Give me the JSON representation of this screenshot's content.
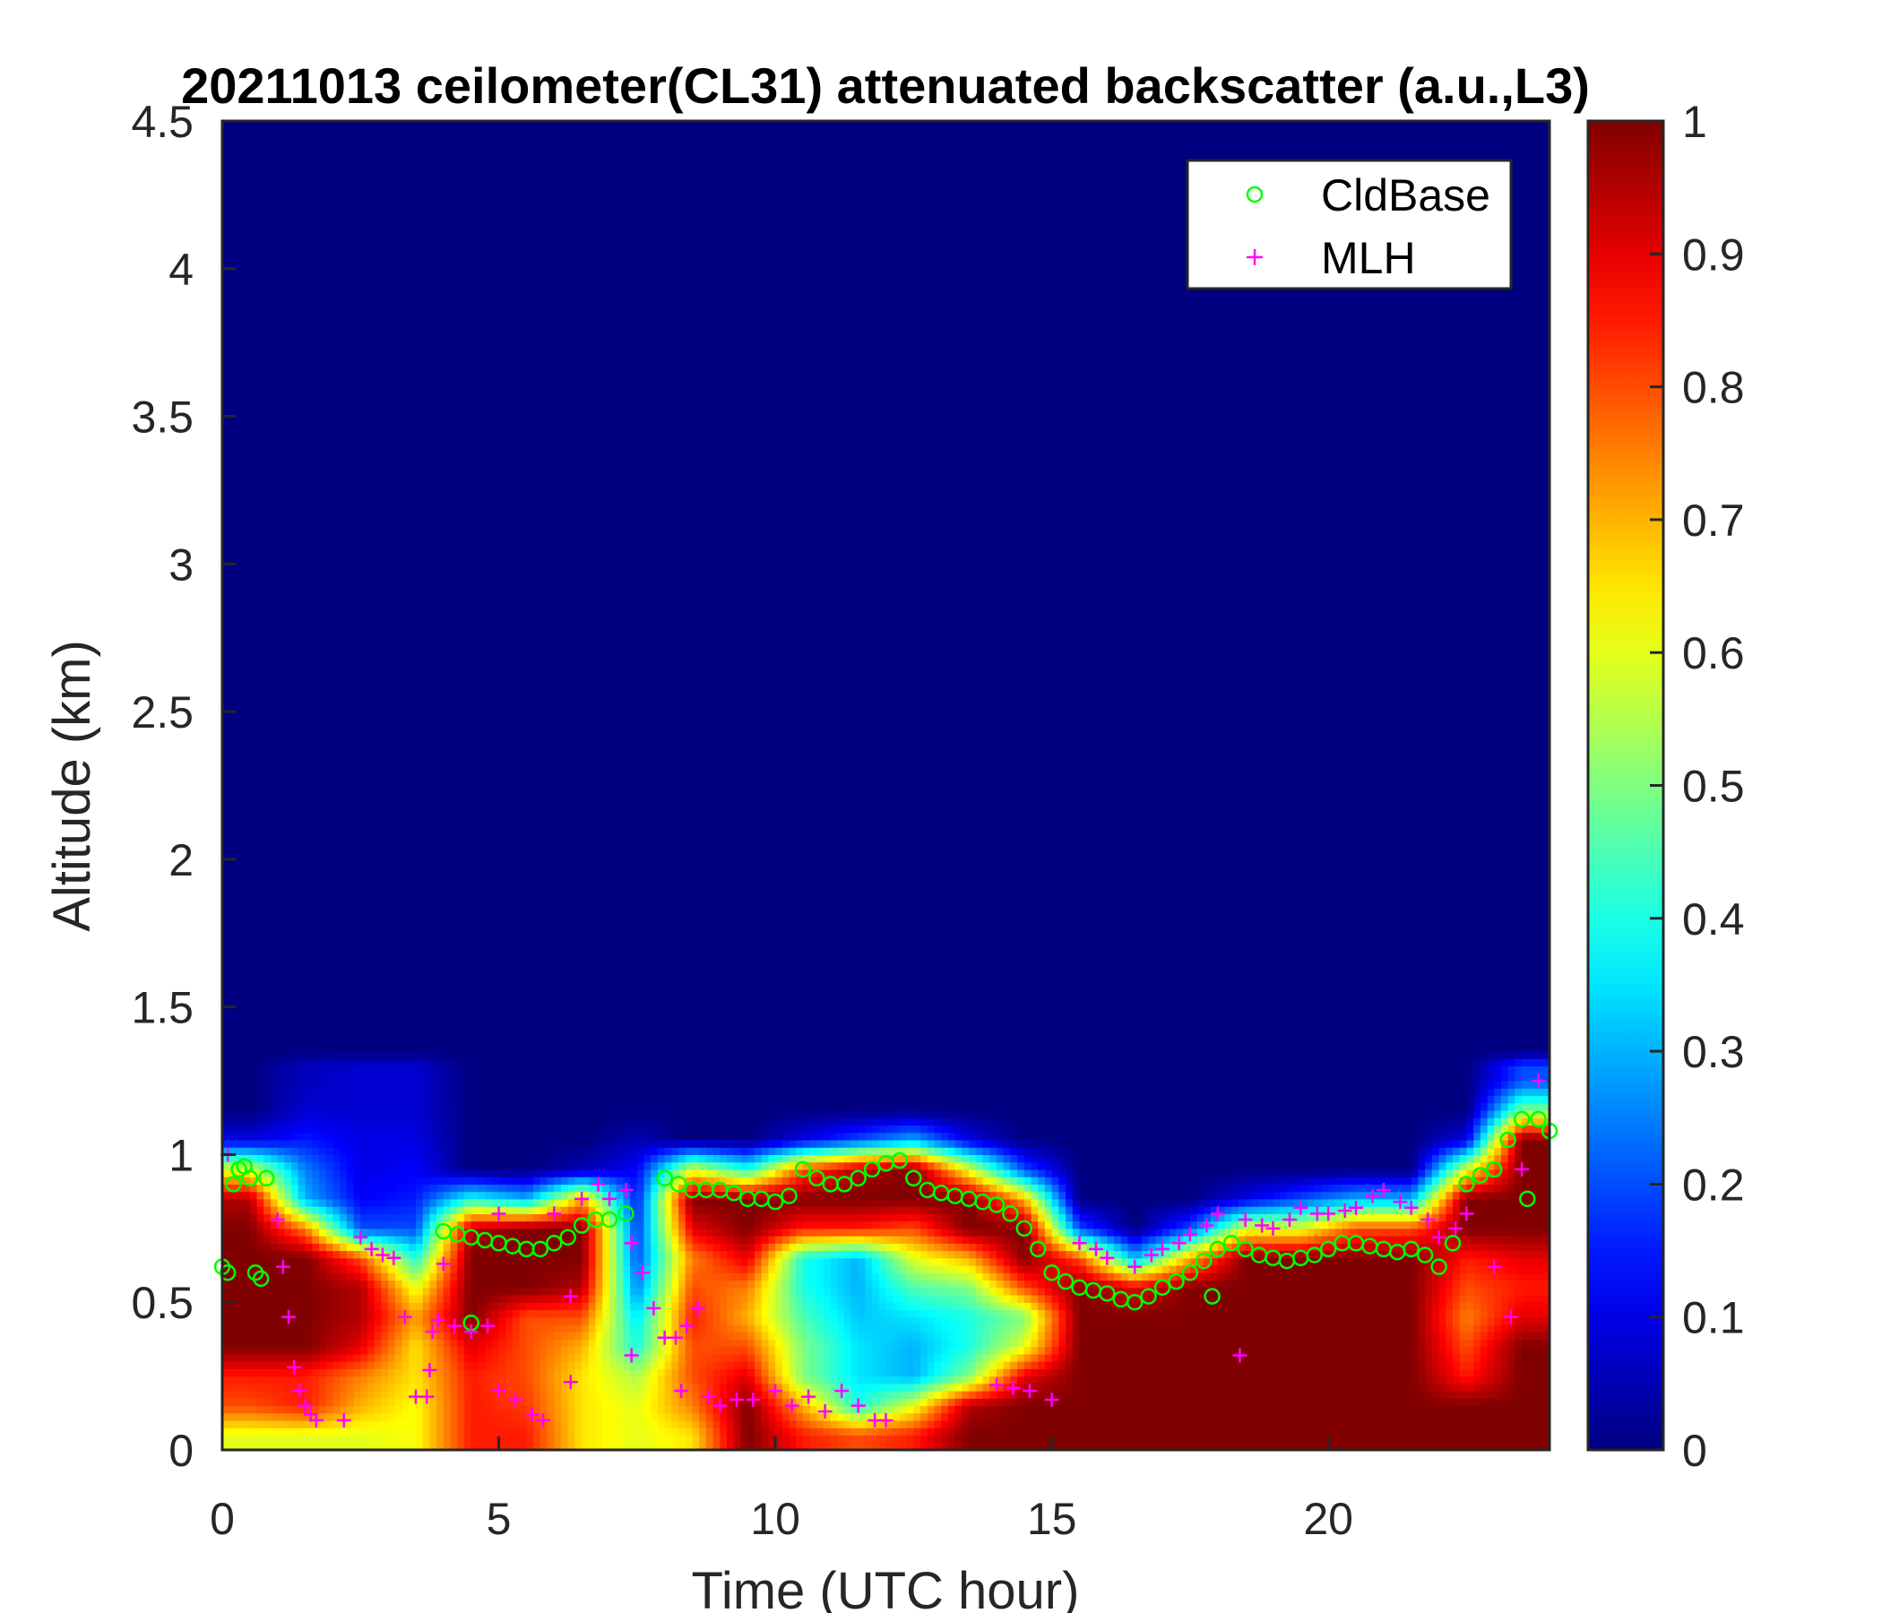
{
  "chart_data": {
    "type": "heatmap",
    "title": "20211013 ceilometer(CL31) attenuated backscatter (a.u.,L3)",
    "xlabel": "Time (UTC hour)",
    "ylabel": "Altitude (km)",
    "xlim": [
      0,
      24
    ],
    "ylim": [
      0,
      4.5
    ],
    "xticks": [
      0,
      5,
      10,
      15,
      20
    ],
    "yticks": [
      0,
      0.5,
      1,
      1.5,
      2,
      2.5,
      3,
      3.5,
      4,
      4.5
    ],
    "colormap": "jet",
    "clim": [
      0,
      1
    ],
    "colorbar_ticks": [
      0,
      0.1,
      0.2,
      0.3,
      0.4,
      0.5,
      0.6,
      0.7,
      0.8,
      0.9,
      1
    ],
    "grid": false,
    "legend_position": "top-right",
    "heatmap_time_centers_hour": [
      0.5,
      1.5,
      2.5,
      3.5,
      4.5,
      5.5,
      6.5,
      7.5,
      8.5,
      9.5,
      10.5,
      11.5,
      12.5,
      13.5,
      14.5,
      15.5,
      16.5,
      17.5,
      18.5,
      19.5,
      20.5,
      21.5,
      22.5,
      23.5
    ],
    "heatmap_altitude_centers_km": [
      0.05,
      0.15,
      0.25,
      0.35,
      0.45,
      0.55,
      0.65,
      0.75,
      0.85,
      0.95,
      1.05,
      1.15,
      1.25
    ],
    "heatmap_values_above_1_3km": 0,
    "heatmap_values": [
      [
        0.6,
        0.8,
        0.85,
        1,
        1,
        1,
        1,
        1,
        0.95,
        0.6,
        0.1,
        0,
        0
      ],
      [
        0.6,
        0.85,
        0.85,
        1,
        1,
        1,
        1,
        0.75,
        0.3,
        0.25,
        0.15,
        0.08,
        0.06
      ],
      [
        0.6,
        0.7,
        0.75,
        0.9,
        0.95,
        0.95,
        0.8,
        0.2,
        0.12,
        0.1,
        0.1,
        0.08,
        0.08
      ],
      [
        0.62,
        0.62,
        0.65,
        0.65,
        0.72,
        0.6,
        0.4,
        0.2,
        0.15,
        0.12,
        0.1,
        0.08,
        0.08
      ],
      [
        0.85,
        0.85,
        0.85,
        0.9,
        1,
        1,
        1,
        0.95,
        0.4,
        0,
        0,
        0,
        0
      ],
      [
        0.85,
        0.82,
        0.8,
        0.8,
        0.8,
        1,
        1,
        1,
        0.3,
        0,
        0,
        0,
        0
      ],
      [
        0.65,
        0.65,
        0.65,
        0.7,
        0.8,
        0.95,
        1,
        1,
        0.7,
        0.05,
        0,
        0,
        0
      ],
      [
        0.6,
        0.6,
        0.55,
        0.4,
        0.35,
        0.25,
        0.2,
        0.18,
        0.15,
        0.12,
        0.05,
        0,
        0
      ],
      [
        0.65,
        0.75,
        0.8,
        0.8,
        0.85,
        0.8,
        0.75,
        0.9,
        1,
        0.6,
        0,
        0,
        0
      ],
      [
        1,
        1,
        0.9,
        0.8,
        0.7,
        0.75,
        0.9,
        1,
        1,
        0.4,
        0,
        0,
        0
      ],
      [
        0.85,
        0.7,
        0.5,
        0.5,
        0.45,
        0.4,
        0.4,
        0.85,
        1,
        0.8,
        0.1,
        0,
        0
      ],
      [
        0.8,
        0.4,
        0.35,
        0.35,
        0.32,
        0.3,
        0.3,
        0.85,
        1,
        0.95,
        0.2,
        0,
        0
      ],
      [
        0.85,
        0.6,
        0.3,
        0.3,
        0.35,
        0.45,
        0.6,
        0.8,
        1,
        1,
        0.3,
        0,
        0
      ],
      [
        1,
        0.95,
        0.5,
        0.4,
        0.4,
        0.5,
        0.7,
        1,
        1,
        0.6,
        0.1,
        0,
        0
      ],
      [
        1,
        1,
        0.9,
        0.6,
        0.5,
        0.8,
        1,
        1,
        0.7,
        0.2,
        0,
        0,
        0
      ],
      [
        1,
        1,
        1,
        1,
        1,
        1,
        0.8,
        0.2,
        0,
        0,
        0,
        0,
        0
      ],
      [
        1,
        1,
        1,
        1,
        1,
        0.9,
        0.3,
        0,
        0,
        0,
        0,
        0,
        0
      ],
      [
        1,
        1,
        1,
        1,
        1,
        1,
        0.7,
        0.2,
        0,
        0,
        0,
        0,
        0
      ],
      [
        1,
        1,
        1,
        1,
        1,
        1,
        1,
        0.6,
        0.1,
        0,
        0,
        0,
        0
      ],
      [
        1,
        1,
        1,
        1,
        1,
        1,
        1,
        0.6,
        0.2,
        0,
        0,
        0,
        0
      ],
      [
        1,
        1,
        1,
        1,
        1,
        1,
        1,
        0.8,
        0.3,
        0,
        0,
        0,
        0
      ],
      [
        1,
        1,
        1,
        1,
        1,
        1,
        1,
        0.8,
        0.3,
        0,
        0,
        0,
        0
      ],
      [
        1,
        1,
        0.85,
        0.8,
        0.75,
        0.8,
        0.85,
        1,
        1,
        0.6,
        0.1,
        0,
        0
      ],
      [
        1,
        1,
        1,
        1,
        0.9,
        0.85,
        0.9,
        1,
        1,
        1,
        1,
        0.5,
        0.2
      ]
    ],
    "series": [
      {
        "name": "CldBase",
        "marker": "circle",
        "color": "#00ff00",
        "points": [
          [
            0,
            0.62
          ],
          [
            0.1,
            0.6
          ],
          [
            0.2,
            0.9
          ],
          [
            0.3,
            0.95
          ],
          [
            0.4,
            0.96
          ],
          [
            0.5,
            0.92
          ],
          [
            0.6,
            0.6
          ],
          [
            0.7,
            0.58
          ],
          [
            0.8,
            0.92
          ],
          [
            4.0,
            0.74
          ],
          [
            4.25,
            0.73
          ],
          [
            4.5,
            0.72
          ],
          [
            4.5,
            0.43
          ],
          [
            4.75,
            0.71
          ],
          [
            5.0,
            0.7
          ],
          [
            5.25,
            0.69
          ],
          [
            5.5,
            0.68
          ],
          [
            5.75,
            0.68
          ],
          [
            6.0,
            0.7
          ],
          [
            6.25,
            0.72
          ],
          [
            6.5,
            0.76
          ],
          [
            6.75,
            0.78
          ],
          [
            7.0,
            0.78
          ],
          [
            7.3,
            0.8
          ],
          [
            8.0,
            0.92
          ],
          [
            8.25,
            0.9
          ],
          [
            8.5,
            0.88
          ],
          [
            8.75,
            0.88
          ],
          [
            9.0,
            0.88
          ],
          [
            9.25,
            0.87
          ],
          [
            9.5,
            0.85
          ],
          [
            9.75,
            0.85
          ],
          [
            10.0,
            0.84
          ],
          [
            10.25,
            0.86
          ],
          [
            10.5,
            0.95
          ],
          [
            10.75,
            0.92
          ],
          [
            11.0,
            0.9
          ],
          [
            11.25,
            0.9
          ],
          [
            11.5,
            0.92
          ],
          [
            11.75,
            0.95
          ],
          [
            12.0,
            0.97
          ],
          [
            12.25,
            0.98
          ],
          [
            12.5,
            0.92
          ],
          [
            12.75,
            0.88
          ],
          [
            13.0,
            0.87
          ],
          [
            13.25,
            0.86
          ],
          [
            13.5,
            0.85
          ],
          [
            13.75,
            0.84
          ],
          [
            14.0,
            0.83
          ],
          [
            14.25,
            0.8
          ],
          [
            14.5,
            0.75
          ],
          [
            14.75,
            0.68
          ],
          [
            15.0,
            0.6
          ],
          [
            15.25,
            0.57
          ],
          [
            15.5,
            0.55
          ],
          [
            15.75,
            0.54
          ],
          [
            16.0,
            0.53
          ],
          [
            16.25,
            0.51
          ],
          [
            16.5,
            0.5
          ],
          [
            16.75,
            0.52
          ],
          [
            17.0,
            0.55
          ],
          [
            17.25,
            0.57
          ],
          [
            17.5,
            0.6
          ],
          [
            17.75,
            0.64
          ],
          [
            17.9,
            0.52
          ],
          [
            18.0,
            0.68
          ],
          [
            18.25,
            0.7
          ],
          [
            18.5,
            0.68
          ],
          [
            18.75,
            0.66
          ],
          [
            19.0,
            0.65
          ],
          [
            19.25,
            0.64
          ],
          [
            19.5,
            0.65
          ],
          [
            19.75,
            0.66
          ],
          [
            20.0,
            0.68
          ],
          [
            20.25,
            0.7
          ],
          [
            20.5,
            0.7
          ],
          [
            20.75,
            0.69
          ],
          [
            21.0,
            0.68
          ],
          [
            21.25,
            0.67
          ],
          [
            21.5,
            0.68
          ],
          [
            21.75,
            0.66
          ],
          [
            22.0,
            0.62
          ],
          [
            22.25,
            0.7
          ],
          [
            22.5,
            0.9
          ],
          [
            22.75,
            0.93
          ],
          [
            23.0,
            0.95
          ],
          [
            23.25,
            1.05
          ],
          [
            23.5,
            1.12
          ],
          [
            23.6,
            0.85
          ],
          [
            23.8,
            1.12
          ],
          [
            24.0,
            1.08
          ]
        ]
      },
      {
        "name": "MLH",
        "marker": "plus",
        "color": "#ff00ff",
        "points": [
          [
            0.1,
            1.0
          ],
          [
            1.0,
            0.78
          ],
          [
            1.1,
            0.62
          ],
          [
            1.2,
            0.45
          ],
          [
            1.3,
            0.28
          ],
          [
            1.4,
            0.2
          ],
          [
            1.5,
            0.15
          ],
          [
            1.6,
            0.12
          ],
          [
            1.7,
            0.1
          ],
          [
            2.2,
            0.1
          ],
          [
            2.5,
            0.72
          ],
          [
            2.7,
            0.68
          ],
          [
            2.9,
            0.66
          ],
          [
            3.1,
            0.65
          ],
          [
            3.3,
            0.45
          ],
          [
            3.5,
            0.18
          ],
          [
            3.7,
            0.18
          ],
          [
            3.75,
            0.27
          ],
          [
            3.8,
            0.4
          ],
          [
            3.9,
            0.44
          ],
          [
            4.0,
            0.63
          ],
          [
            4.2,
            0.42
          ],
          [
            4.5,
            0.4
          ],
          [
            4.8,
            0.42
          ],
          [
            5.0,
            0.8
          ],
          [
            5.0,
            0.2
          ],
          [
            5.3,
            0.17
          ],
          [
            5.6,
            0.12
          ],
          [
            5.8,
            0.1
          ],
          [
            6.0,
            0.8
          ],
          [
            6.3,
            0.52
          ],
          [
            6.3,
            0.23
          ],
          [
            6.5,
            0.85
          ],
          [
            6.8,
            0.9
          ],
          [
            7.0,
            0.85
          ],
          [
            7.3,
            0.88
          ],
          [
            7.4,
            0.7
          ],
          [
            7.4,
            0.32
          ],
          [
            7.6,
            0.6
          ],
          [
            7.8,
            0.48
          ],
          [
            8.0,
            0.38
          ],
          [
            8.2,
            0.38
          ],
          [
            8.4,
            0.42
          ],
          [
            8.6,
            0.48
          ],
          [
            8.3,
            0.2
          ],
          [
            8.8,
            0.18
          ],
          [
            9.0,
            0.15
          ],
          [
            9.3,
            0.17
          ],
          [
            9.6,
            0.17
          ],
          [
            10.0,
            0.2
          ],
          [
            10.3,
            0.15
          ],
          [
            10.6,
            0.18
          ],
          [
            10.9,
            0.13
          ],
          [
            11.2,
            0.2
          ],
          [
            11.5,
            0.15
          ],
          [
            11.8,
            0.1
          ],
          [
            12.0,
            0.1
          ],
          [
            14.0,
            0.22
          ],
          [
            14.3,
            0.21
          ],
          [
            14.6,
            0.2
          ],
          [
            15.0,
            0.17
          ],
          [
            15.5,
            0.7
          ],
          [
            15.8,
            0.68
          ],
          [
            16.0,
            0.65
          ],
          [
            16.5,
            0.62
          ],
          [
            16.8,
            0.66
          ],
          [
            17.0,
            0.68
          ],
          [
            17.3,
            0.7
          ],
          [
            17.5,
            0.73
          ],
          [
            17.8,
            0.76
          ],
          [
            18.0,
            0.8
          ],
          [
            18.4,
            0.32
          ],
          [
            18.5,
            0.78
          ],
          [
            18.8,
            0.76
          ],
          [
            19.0,
            0.75
          ],
          [
            19.3,
            0.78
          ],
          [
            19.5,
            0.82
          ],
          [
            19.8,
            0.8
          ],
          [
            20.0,
            0.8
          ],
          [
            20.3,
            0.81
          ],
          [
            20.5,
            0.82
          ],
          [
            20.8,
            0.86
          ],
          [
            21.0,
            0.88
          ],
          [
            21.3,
            0.84
          ],
          [
            21.5,
            0.82
          ],
          [
            21.8,
            0.78
          ],
          [
            22.0,
            0.72
          ],
          [
            22.3,
            0.75
          ],
          [
            22.5,
            0.8
          ],
          [
            23.0,
            0.62
          ],
          [
            23.3,
            0.45
          ],
          [
            23.5,
            0.95
          ],
          [
            23.8,
            1.25
          ]
        ]
      }
    ]
  }
}
